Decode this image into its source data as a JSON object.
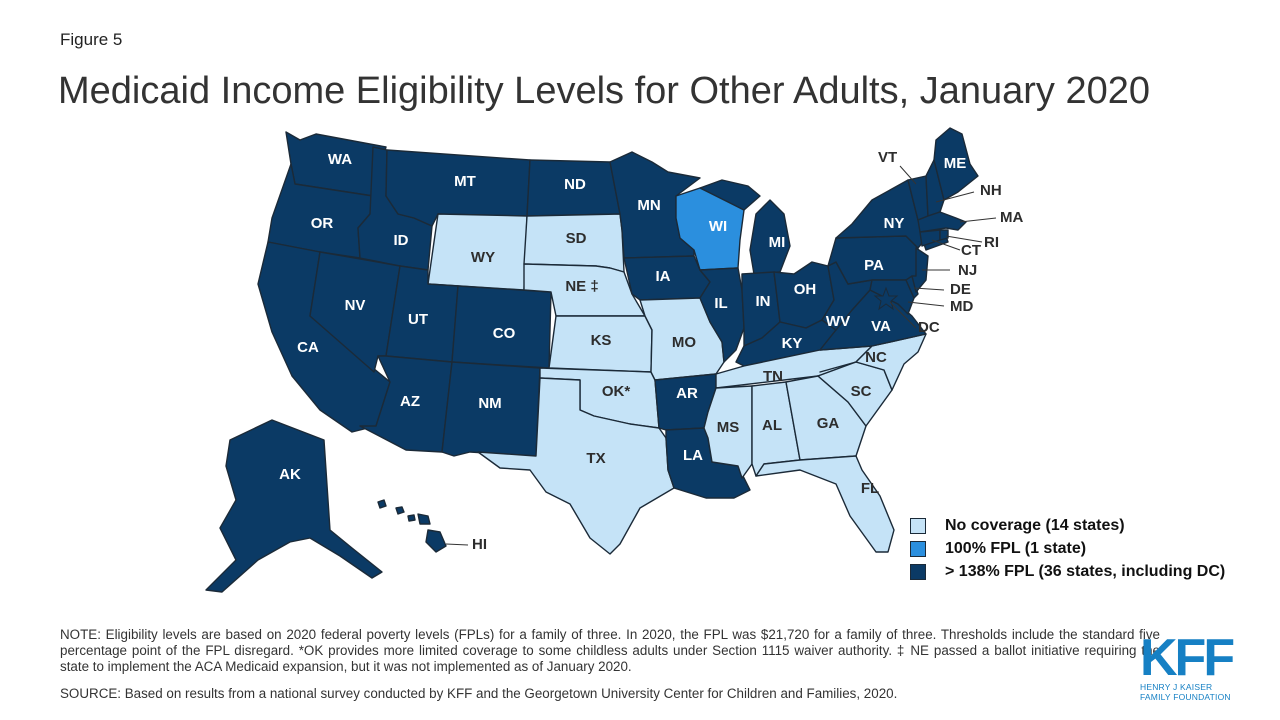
{
  "figure_label": "Figure 5",
  "title": "Medicaid Income Eligibility Levels for Other Adults, January 2020",
  "colors": {
    "no_coverage": "#c5e3f7",
    "fpl_100": "#2b8fde",
    "fpl_138": "#0b3a65"
  },
  "states": {
    "WA": "WA",
    "OR": "OR",
    "CA": "CA",
    "ID": "ID",
    "NV": "NV",
    "MT": "MT",
    "WY": "WY",
    "UT": "UT",
    "AZ": "AZ",
    "CO": "CO",
    "NM": "NM",
    "ND": "ND",
    "SD": "SD",
    "NE": "NE ‡",
    "KS": "KS",
    "OK": "OK*",
    "TX": "TX",
    "MN": "MN",
    "IA": "IA",
    "MO": "MO",
    "AR": "AR",
    "LA": "LA",
    "WI": "WI",
    "IL": "IL",
    "MI": "MI",
    "IN": "IN",
    "OH": "OH",
    "KY": "KY",
    "TN": "TN",
    "MS": "MS",
    "AL": "AL",
    "GA": "GA",
    "FL": "FL",
    "SC": "SC",
    "NC": "NC",
    "VA": "VA",
    "WV": "WV",
    "PA": "PA",
    "NY": "NY",
    "ME": "ME",
    "VT": "VT",
    "NH": "NH",
    "MA": "MA",
    "RI": "RI",
    "CT": "CT",
    "NJ": "NJ",
    "DE": "DE",
    "MD": "MD",
    "DC": "DC",
    "AK": "AK",
    "HI": "HI"
  },
  "legend": [
    {
      "label": "No coverage (14 states)"
    },
    {
      "label": "100% FPL (1 state)"
    },
    {
      "label": "> 138% FPL (36 states, including DC)"
    }
  ],
  "note": "NOTE: Eligibility levels are based on 2020 federal poverty levels (FPLs) for a family of three. In 2020, the FPL was $21,720 for a family of three. Thresholds include the standard five percentage point of the FPL disregard. *OK provides more limited coverage to some childless adults under Section 1115 waiver authority. ‡ NE passed a ballot initiative requiring the state to implement the ACA Medicaid expansion, but it was not implemented as of January 2020.",
  "source": "SOURCE: Based on results from a national survey conducted by KFF and the Georgetown University Center for Children and Families, 2020.",
  "logo": {
    "mark": "KFF",
    "line1": "HENRY J KAISER",
    "line2": "FAMILY FOUNDATION"
  }
}
